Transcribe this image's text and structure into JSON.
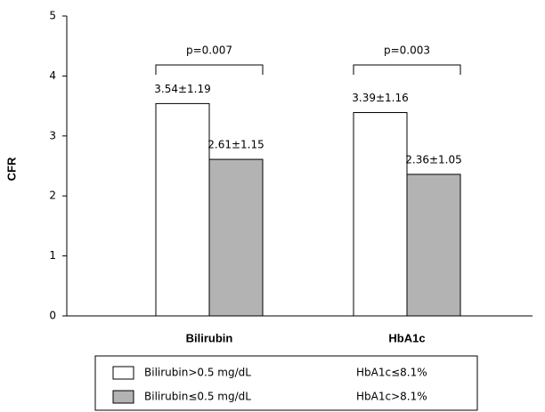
{
  "chart_data": {
    "type": "bar",
    "y_label": "CFR",
    "categories": [
      "Bilirubin",
      "HbA1c"
    ],
    "series": [
      {
        "name": "Bilirubin>0.5 mg/dL",
        "legend_names": [
          "Bilirubin>0.5 mg/dL",
          "HbA1c≤8.1%"
        ],
        "color": "#ffffff",
        "values": [
          3.54,
          3.39
        ],
        "value_labels": [
          "3.54±1.19",
          "3.39±1.16"
        ]
      },
      {
        "name": "Bilirubin≤0.5 mg/dL",
        "legend_names": [
          "Bilirubin≤0.5 mg/dL",
          "HbA1c>8.1%"
        ],
        "color": "#b3b3b3",
        "values": [
          2.61,
          2.36
        ],
        "value_labels": [
          "2.61±1.15",
          "2.36±1.05"
        ]
      }
    ],
    "annotations": [
      "p=0.007",
      "p=0.003"
    ],
    "ylim": [
      0,
      5
    ],
    "yticks": [
      0,
      1,
      2,
      3,
      4,
      5
    ]
  }
}
